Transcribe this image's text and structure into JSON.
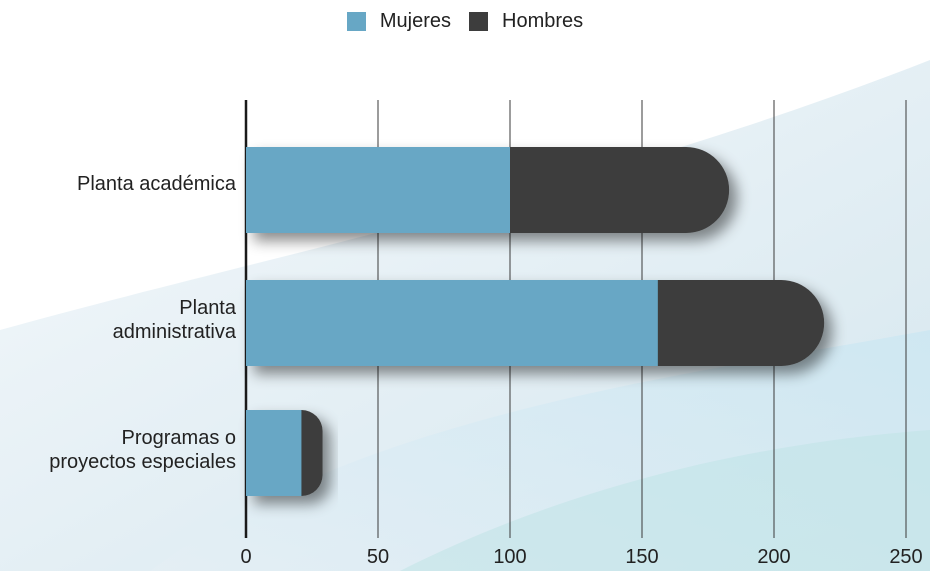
{
  "chart_data": {
    "type": "bar",
    "orientation": "horizontal",
    "stacked": true,
    "categories": [
      "Planta académica",
      "Planta\nadministrativa",
      "Programas o\nproyectos especiales"
    ],
    "series": [
      {
        "name": "Mujeres",
        "values": [
          100,
          156,
          21
        ],
        "color": "#67a7c5"
      },
      {
        "name": "Hombres",
        "values": [
          83,
          63,
          8
        ],
        "color": "#3d3d3d"
      }
    ],
    "xlim": [
      0,
      250
    ],
    "xticks": [
      "0",
      "50",
      "100",
      "150",
      "200",
      "250"
    ],
    "grid": true,
    "legend_position": "top-center",
    "title": "",
    "xlabel": "",
    "ylabel": ""
  }
}
